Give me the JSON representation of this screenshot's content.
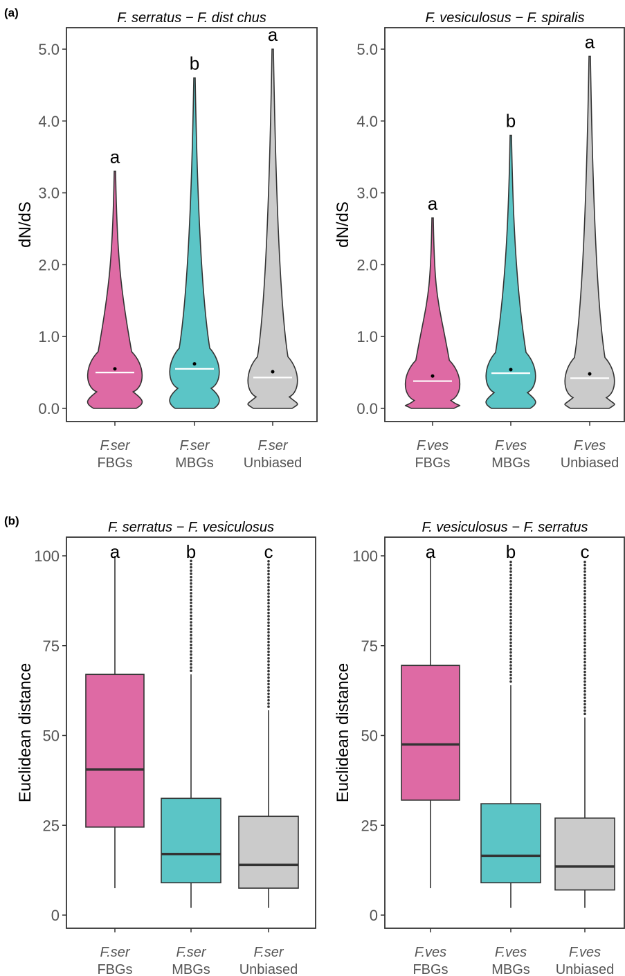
{
  "panels": [
    {
      "label": "(a)"
    },
    {
      "label": "(b)"
    }
  ],
  "colors": {
    "FBGs": "#DE6AA4",
    "MBGs": "#5BC5C6",
    "Unbiased": "#CBCBCB",
    "axis": "#333333"
  },
  "chart_data": [
    {
      "type": "violin",
      "panel": "(a)",
      "title": "F. serratus − F. dist chus",
      "ylabel": "dN/dS",
      "ylim": [
        0,
        5.1
      ],
      "yticks": [
        "0.0",
        "1.0",
        "2.0",
        "3.0",
        "4.0",
        "5.0"
      ],
      "ytick_values": [
        0,
        1,
        2,
        3,
        4,
        5
      ],
      "categories": [
        {
          "species": "F.ser",
          "group": "FBGs",
          "median": 0.5,
          "mean": 0.55,
          "max": 3.3,
          "letter": "a"
        },
        {
          "species": "F.ser",
          "group": "MBGs",
          "median": 0.55,
          "mean": 0.62,
          "max": 4.6,
          "letter": "b"
        },
        {
          "species": "F.ser",
          "group": "Unbiased",
          "median": 0.43,
          "mean": 0.51,
          "max": 5.0,
          "letter": "a"
        }
      ]
    },
    {
      "type": "violin",
      "panel": "(a)",
      "title": "F. vesiculosus − F. spiralis",
      "ylabel": "dN/dS",
      "ylim": [
        0,
        5.1
      ],
      "yticks": [
        "0.0",
        "1.0",
        "2.0",
        "3.0",
        "4.0",
        "5.0"
      ],
      "ytick_values": [
        0,
        1,
        2,
        3,
        4,
        5
      ],
      "categories": [
        {
          "species": "F.ves",
          "group": "FBGs",
          "median": 0.38,
          "mean": 0.45,
          "max": 2.65,
          "letter": "a"
        },
        {
          "species": "F.ves",
          "group": "MBGs",
          "median": 0.49,
          "mean": 0.54,
          "max": 3.8,
          "letter": "b"
        },
        {
          "species": "F.ves",
          "group": "Unbiased",
          "median": 0.42,
          "mean": 0.48,
          "max": 4.9,
          "letter": "a"
        }
      ]
    },
    {
      "type": "box",
      "panel": "(b)",
      "title": "F. serratus − F. vesiculosus",
      "ylabel": "Euclidean distance",
      "ylim": [
        0,
        100
      ],
      "yticks": [
        "0",
        "25",
        "50",
        "75",
        "100"
      ],
      "ytick_values": [
        0,
        25,
        50,
        75,
        100
      ],
      "categories": [
        {
          "species": "F.ser",
          "group": "FBGs",
          "min": 7.5,
          "q1": 24.5,
          "median": 40.5,
          "q3": 67,
          "max": 100,
          "outliers_from": null,
          "letter": "a"
        },
        {
          "species": "F.ser",
          "group": "MBGs",
          "min": 2,
          "q1": 9,
          "median": 17,
          "q3": 32.5,
          "max": 67,
          "outliers_from": 68,
          "letter": "b"
        },
        {
          "species": "F.ser",
          "group": "Unbiased",
          "min": 2,
          "q1": 7.5,
          "median": 14,
          "q3": 27.5,
          "max": 57,
          "outliers_from": 58,
          "letter": "c"
        }
      ]
    },
    {
      "type": "box",
      "panel": "(b)",
      "title": "F. vesiculosus − F. serratus",
      "ylabel": "Euclidean distance",
      "ylim": [
        0,
        100
      ],
      "yticks": [
        "0",
        "25",
        "50",
        "75",
        "100"
      ],
      "ytick_values": [
        0,
        25,
        50,
        75,
        100
      ],
      "categories": [
        {
          "species": "F.ves",
          "group": "FBGs",
          "min": 7.5,
          "q1": 32,
          "median": 47.5,
          "q3": 69.5,
          "max": 100,
          "outliers_from": null,
          "letter": "a"
        },
        {
          "species": "F.ves",
          "group": "MBGs",
          "min": 2,
          "q1": 9,
          "median": 16.5,
          "q3": 31,
          "max": 64,
          "outliers_from": 65,
          "letter": "b"
        },
        {
          "species": "F.ves",
          "group": "Unbiased",
          "min": 2,
          "q1": 7,
          "median": 13.5,
          "q3": 27,
          "max": 55,
          "outliers_from": 56,
          "letter": "c"
        }
      ]
    }
  ]
}
